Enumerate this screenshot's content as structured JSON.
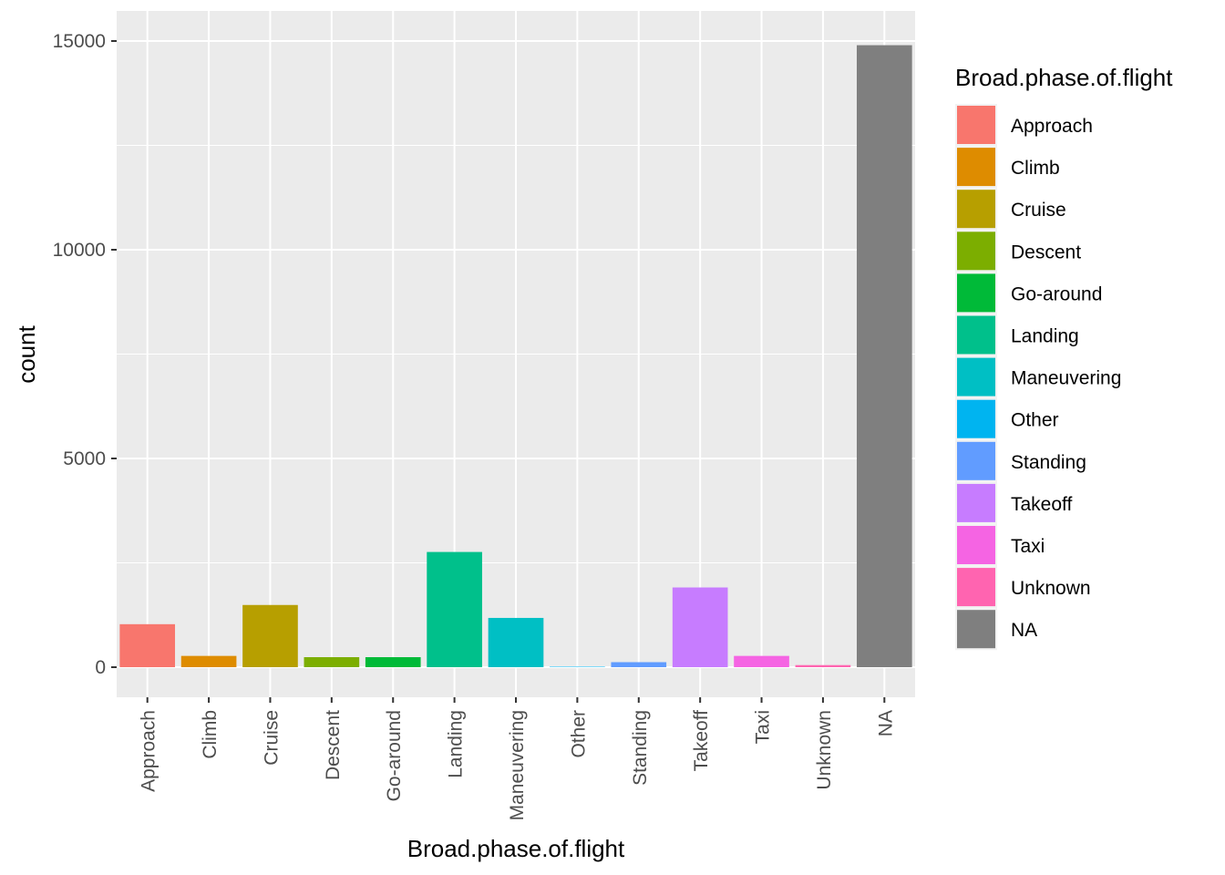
{
  "chart_data": {
    "type": "bar",
    "title": "",
    "xlabel": "Broad.phase.of.flight",
    "ylabel": "count",
    "categories": [
      "Approach",
      "Climb",
      "Cruise",
      "Descent",
      "Go-around",
      "Landing",
      "Maneuvering",
      "Other",
      "Standing",
      "Takeoff",
      "Taxi",
      "Unknown",
      "NA"
    ],
    "values": [
      1030,
      270,
      1490,
      240,
      240,
      2760,
      1180,
      10,
      120,
      1910,
      270,
      50,
      14900
    ],
    "colors": [
      "#F8766D",
      "#DE8C00",
      "#B79F00",
      "#7CAE00",
      "#00BA38",
      "#00C08B",
      "#00BFC4",
      "#00B4F0",
      "#619CFF",
      "#C77CFF",
      "#F564E3",
      "#FF64B0",
      "#7F7F7F"
    ],
    "yticks": [
      0,
      5000,
      10000,
      15000
    ],
    "ylim": [
      -700,
      15600
    ],
    "grid": true,
    "legend": {
      "title": "Broad.phase.of.flight",
      "position": "right"
    }
  }
}
